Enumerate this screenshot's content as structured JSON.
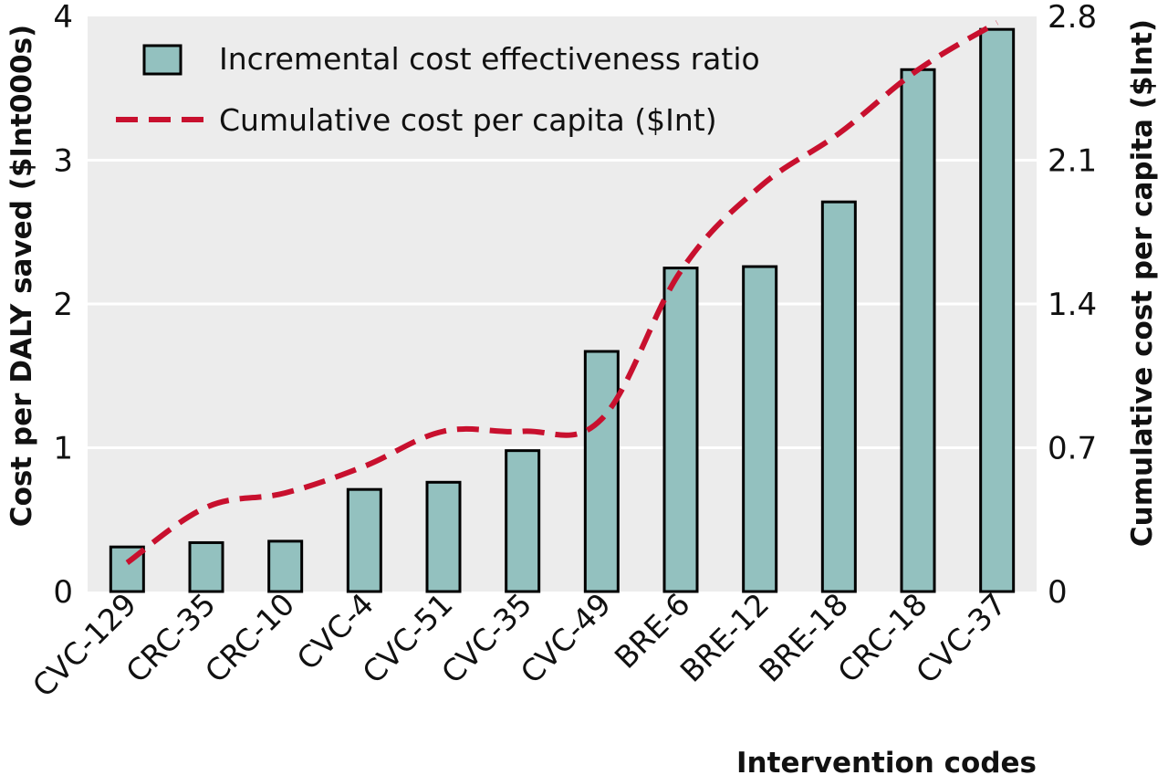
{
  "chart_data": {
    "type": "bar",
    "categories": [
      "CVC-129",
      "CRC-35",
      "CRC-10",
      "CVC-4",
      "CVC-51",
      "CVC-35",
      "CVC-49",
      "BRE-6",
      "BRE-12",
      "BRE-18",
      "CRC-18",
      "CVC-37"
    ],
    "series": [
      {
        "name": "Incremental cost effectiveness ratio",
        "type": "bar",
        "axis": "left",
        "values": [
          0.31,
          0.34,
          0.35,
          0.71,
          0.76,
          0.98,
          1.67,
          2.25,
          2.26,
          2.71,
          3.63,
          3.91
        ]
      },
      {
        "name": "Cumulative cost per capita ($Int)",
        "type": "line",
        "axis": "right",
        "style": "dashed",
        "values": [
          0.14,
          0.41,
          0.48,
          0.61,
          0.78,
          0.78,
          0.84,
          1.56,
          1.97,
          2.23,
          2.54,
          2.77
        ]
      }
    ],
    "xlabel": "Intervention codes",
    "ylabel": "Cost per DALY saved ($Int000s)",
    "y2label": "Cumulative cost per capita ($Int)",
    "ylim": [
      0,
      4
    ],
    "y2lim": [
      0,
      2.8
    ],
    "yticks": [
      "0",
      "1",
      "2",
      "3",
      "4"
    ],
    "y2ticks": [
      "0",
      "0.7",
      "1.4",
      "2.1",
      "2.8"
    ],
    "grid": "horizontal",
    "legend_position": "top-left",
    "colors": {
      "bar_fill": "#93c1bf",
      "bar_stroke": "#000000",
      "line": "#c8102e",
      "plot_bg": "#ececec",
      "grid": "#ffffff"
    }
  }
}
